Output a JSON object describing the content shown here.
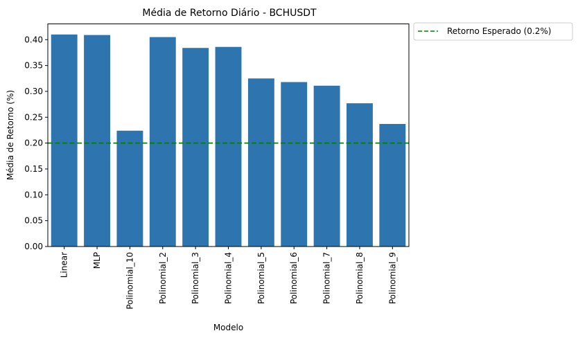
{
  "chart_data": {
    "type": "bar",
    "title": "Média de Retorno Diário - BCHUSDT",
    "xlabel": "Modelo",
    "ylabel": "Média de Retorno (%)",
    "categories": [
      "Linear",
      "MLP",
      "Polinomial_10",
      "Polinomial_2",
      "Polinomial_3",
      "Polinomial_4",
      "Polinomial_5",
      "Polinomial_6",
      "Polinomial_7",
      "Polinomial_8",
      "Polinomial_9"
    ],
    "values": [
      0.41,
      0.409,
      0.224,
      0.405,
      0.384,
      0.386,
      0.325,
      0.318,
      0.311,
      0.277,
      0.237
    ],
    "ylim": [
      0,
      0.4305
    ],
    "yticks": [
      "0.00",
      "0.05",
      "0.10",
      "0.15",
      "0.20",
      "0.25",
      "0.30",
      "0.35",
      "0.40"
    ],
    "reference_line": {
      "value": 0.2,
      "label": "Retorno Esperado (0.2%)",
      "style": "dashed",
      "color": "#008000"
    },
    "bar_color": "#2e75b0",
    "legend_position": "outside-top-right",
    "grid": false
  }
}
